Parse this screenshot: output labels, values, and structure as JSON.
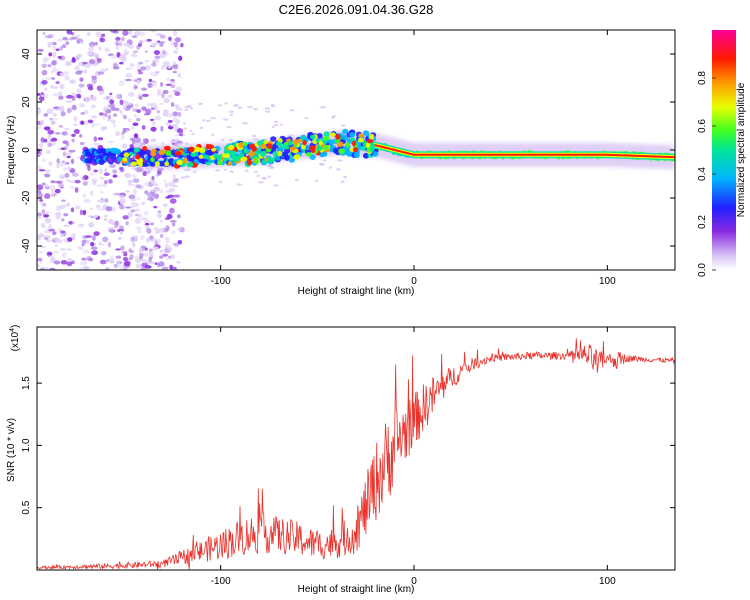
{
  "title": "C2E6.2026.091.04.36.G28",
  "chart_data": [
    {
      "type": "heatmap",
      "name": "spectrogram",
      "xlabel": "Height of straight line (km)",
      "ylabel": "Frequency (Hz)",
      "xlim": [
        -195,
        135
      ],
      "ylim": [
        -50,
        50
      ],
      "x_ticks": [
        -100,
        0,
        100
      ],
      "y_ticks": [
        -40,
        -20,
        0,
        20,
        40
      ],
      "colorbar": {
        "label": "Normalized spectral amplitude",
        "range": [
          0,
          1
        ],
        "ticks": [
          0.0,
          0.2,
          0.4,
          0.6,
          0.8
        ],
        "colormap": [
          "#ffffff",
          "#c8a8f0",
          "#8a2be2",
          "#0000ff",
          "#00c8ff",
          "#00ff80",
          "#ffff00",
          "#ff8000",
          "#ff0000",
          "#ff00aa"
        ]
      },
      "ridge": {
        "description_points_x": [
          -170,
          -150,
          -120,
          -100,
          -80,
          -60,
          -40,
          -20,
          0,
          20,
          60,
          100,
          135
        ],
        "description_points_freq": [
          -3,
          -3,
          -3,
          -2,
          -1,
          1,
          3,
          2,
          -2,
          -2,
          -2,
          -2,
          -3
        ]
      }
    },
    {
      "type": "line",
      "name": "snr",
      "xlabel": "Height of straight line (km)",
      "ylabel": "SNR (10 * v/v)",
      "scale_label": "(x10",
      "scale_exp": "4",
      "scale_close": ")",
      "xlim": [
        -195,
        135
      ],
      "ylim": [
        0,
        1.95
      ],
      "x_ticks": [
        -100,
        0,
        100
      ],
      "y_ticks": [
        0.5,
        1.0,
        1.5
      ],
      "color": "#e8322c",
      "series": [
        {
          "name": "SNR",
          "x": [
            -195,
            -160,
            -130,
            -120,
            -110,
            -100,
            -90,
            -80,
            -70,
            -60,
            -50,
            -40,
            -30,
            -25,
            -20,
            -15,
            -12,
            -8,
            -5,
            0,
            5,
            10,
            20,
            30,
            40,
            60,
            80,
            90,
            95,
            100,
            105,
            110,
            120,
            135
          ],
          "y": [
            0.02,
            0.03,
            0.05,
            0.1,
            0.15,
            0.2,
            0.26,
            0.3,
            0.28,
            0.25,
            0.2,
            0.22,
            0.3,
            0.5,
            0.7,
            0.85,
            0.95,
            1.05,
            1.1,
            1.2,
            1.3,
            1.4,
            1.55,
            1.65,
            1.7,
            1.72,
            1.72,
            1.72,
            1.65,
            1.7,
            1.68,
            1.7,
            1.69,
            1.68
          ],
          "noise_amp": [
            0.01,
            0.02,
            0.03,
            0.06,
            0.09,
            0.12,
            0.15,
            0.17,
            0.15,
            0.14,
            0.12,
            0.13,
            0.17,
            0.25,
            0.32,
            0.35,
            0.35,
            0.3,
            0.25,
            0.22,
            0.2,
            0.16,
            0.09,
            0.05,
            0.03,
            0.03,
            0.03,
            0.1,
            0.12,
            0.03,
            0.08,
            0.03,
            0.02,
            0.02
          ]
        }
      ]
    }
  ]
}
